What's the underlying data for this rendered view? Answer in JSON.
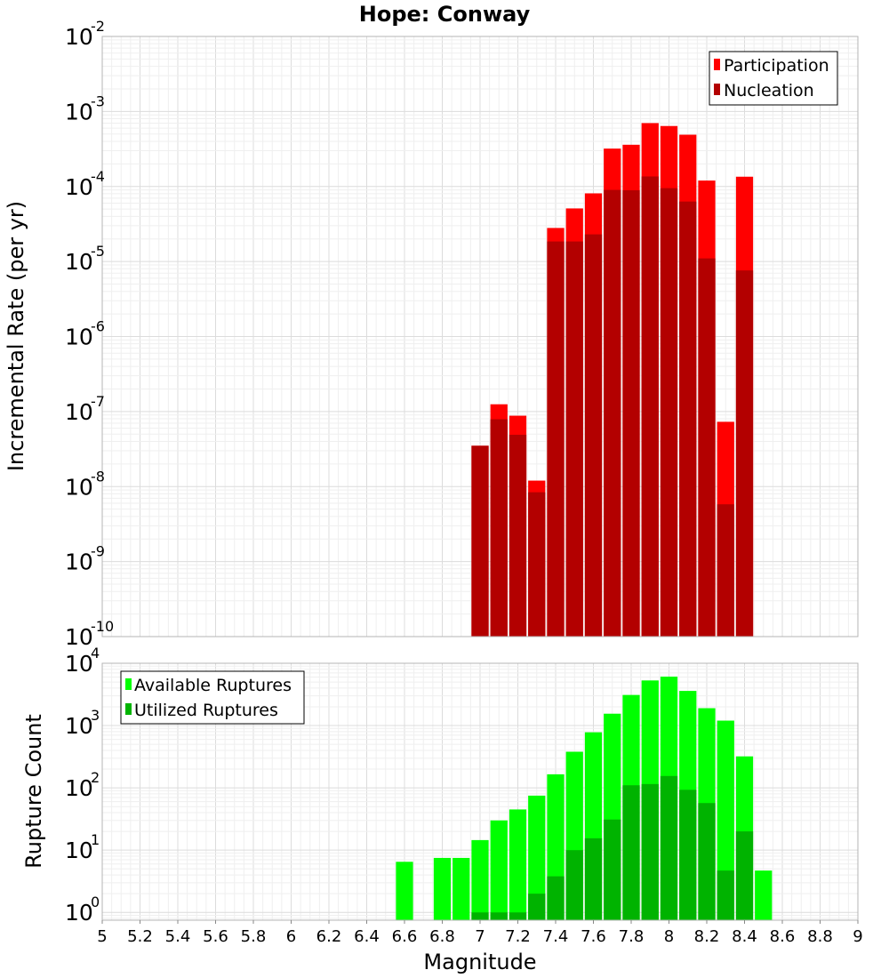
{
  "chart_data": [
    {
      "type": "bar",
      "title": "Hope: Conway",
      "ylabel": "Incremental Rate (per yr)",
      "yscale": "log",
      "ylim": [
        1e-10,
        0.01
      ],
      "xlim": [
        5,
        9
      ],
      "grid": true,
      "legend_position": "top-right",
      "bar_width": 0.1,
      "x": [
        7.0,
        7.1,
        7.2,
        7.3,
        7.4,
        7.5,
        7.6,
        7.7,
        7.8,
        7.9,
        8.0,
        8.1,
        8.2,
        8.3,
        8.4
      ],
      "series": [
        {
          "name": "Participation",
          "color": "#ff0000",
          "values": [
            3.5e-08,
            1.25e-07,
            8.8e-08,
            1.2e-08,
            2.8e-05,
            5.1e-05,
            8.1e-05,
            0.00032,
            0.00036,
            0.0007,
            0.00064,
            0.00049,
            0.00012,
            7.3e-08,
            0.000135
          ]
        },
        {
          "name": "Nucleation",
          "color": "#b30000",
          "values": [
            3.5e-08,
            7.9e-08,
            4.9e-08,
            8.4e-09,
            1.85e-05,
            1.85e-05,
            2.3e-05,
            9e-05,
            8.9e-05,
            0.000136,
            9.5e-05,
            6.3e-05,
            1.1e-05,
            5.8e-09,
            7.6e-06
          ]
        }
      ],
      "y_ticks": [
        {
          "base": "10",
          "exp": "-2"
        },
        {
          "base": "10",
          "exp": "-3"
        },
        {
          "base": "10",
          "exp": "-4"
        },
        {
          "base": "10",
          "exp": "-5"
        },
        {
          "base": "10",
          "exp": "-6"
        },
        {
          "base": "10",
          "exp": "-7"
        },
        {
          "base": "10",
          "exp": "-8"
        },
        {
          "base": "10",
          "exp": "-9"
        },
        {
          "base": "10",
          "exp": "-10"
        }
      ]
    },
    {
      "type": "bar",
      "xlabel": "Magnitude",
      "ylabel": "Rupture Count",
      "yscale": "log",
      "ylim": [
        0.75,
        10000
      ],
      "xlim": [
        5,
        9
      ],
      "grid": true,
      "legend_position": "top-left",
      "bar_width": 0.1,
      "x": [
        6.6,
        6.8,
        6.9,
        7.0,
        7.1,
        7.2,
        7.3,
        7.4,
        7.5,
        7.6,
        7.7,
        7.8,
        7.9,
        8.0,
        8.1,
        8.2,
        8.3,
        8.4,
        8.5
      ],
      "series": [
        {
          "name": "Available Ruptures",
          "color": "#00ff00",
          "values": [
            6.5,
            7.5,
            7.5,
            14.5,
            30,
            45,
            75,
            165,
            380,
            780,
            1550,
            3100,
            5300,
            6100,
            3600,
            1900,
            1200,
            320,
            4.7
          ]
        },
        {
          "name": "Utilized Ruptures",
          "color": "#00b300",
          "values": [
            0,
            0,
            0,
            1,
            1,
            1,
            2,
            3.8,
            10,
            15.5,
            31,
            110,
            115,
            155,
            93,
            57,
            4.7,
            20,
            0
          ]
        }
      ],
      "y_ticks": [
        {
          "base": "10",
          "exp": "4"
        },
        {
          "base": "10",
          "exp": "3"
        },
        {
          "base": "10",
          "exp": "2"
        },
        {
          "base": "10",
          "exp": "1"
        },
        {
          "base": "10",
          "exp": "0"
        }
      ],
      "x_tick_labels": [
        "5",
        "5.2",
        "5.4",
        "5.6",
        "5.8",
        "6",
        "6.2",
        "6.4",
        "6.6",
        "6.8",
        "7",
        "7.2",
        "7.4",
        "7.6",
        "7.8",
        "8",
        "8.2",
        "8.4",
        "8.6",
        "8.8",
        "9"
      ]
    }
  ]
}
